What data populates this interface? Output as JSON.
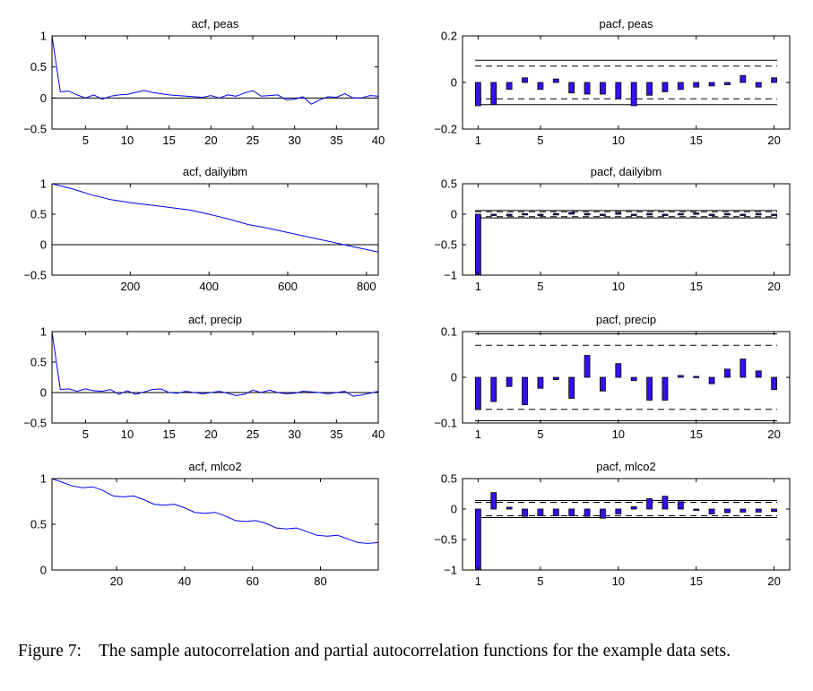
{
  "caption": {
    "label": "Figure 7:",
    "text": "The sample autocorrelation and partial autocorrelation functions for the example data sets."
  },
  "colors": {
    "series": "#0000ee",
    "bar_fill": "#3311ee",
    "axis": "#000000",
    "reference": "#000000"
  },
  "chart_data": [
    {
      "type": "line",
      "title": "acf, peas",
      "xlim": [
        1,
        40
      ],
      "ylim": [
        -0.5,
        1
      ],
      "xticks": [
        5,
        10,
        15,
        20,
        25,
        30,
        35,
        40
      ],
      "yticks": [
        -0.5,
        0,
        0.5,
        1
      ],
      "ytick_labels": [
        "−0.5",
        "0",
        "0.5",
        "1"
      ],
      "zero_line": true,
      "x": [
        1,
        2,
        3,
        4,
        5,
        6,
        7,
        8,
        9,
        10,
        11,
        12,
        13,
        14,
        15,
        16,
        17,
        18,
        19,
        20,
        21,
        22,
        23,
        24,
        25,
        26,
        27,
        28,
        29,
        30,
        31,
        32,
        33,
        34,
        35,
        36,
        37,
        38,
        39,
        40
      ],
      "y": [
        1.0,
        0.1,
        0.11,
        0.05,
        0.0,
        0.05,
        -0.02,
        0.03,
        0.05,
        0.06,
        0.09,
        0.12,
        0.09,
        0.07,
        0.05,
        0.04,
        0.03,
        0.02,
        0.01,
        0.04,
        0.0,
        0.05,
        0.03,
        0.08,
        0.12,
        0.03,
        0.04,
        0.05,
        -0.03,
        -0.02,
        0.02,
        -0.1,
        -0.03,
        0.02,
        0.01,
        0.07,
        0.0,
        0.0,
        0.04,
        0.03
      ]
    },
    {
      "type": "bar",
      "title": "pacf, peas",
      "xlim": [
        0,
        21
      ],
      "ylim": [
        -0.2,
        0.2
      ],
      "xticks": [
        1,
        5,
        10,
        15,
        20
      ],
      "yticks": [
        -0.2,
        0,
        0.2
      ],
      "ytick_labels": [
        "−0.2",
        "0",
        "0.2"
      ],
      "zero_line": false,
      "dashed_bounds": 0.07,
      "solid_bounds": 0.095,
      "categories": [
        1,
        2,
        3,
        4,
        5,
        6,
        7,
        8,
        9,
        10,
        11,
        12,
        13,
        14,
        15,
        16,
        17,
        18,
        19,
        20
      ],
      "values": [
        -0.1,
        -0.095,
        -0.03,
        0.02,
        -0.03,
        0.015,
        -0.045,
        -0.05,
        -0.05,
        -0.07,
        -0.1,
        -0.055,
        -0.04,
        -0.03,
        -0.02,
        -0.015,
        -0.01,
        0.03,
        -0.02,
        0.02
      ]
    },
    {
      "type": "line",
      "title": "acf, dailyibm",
      "xlim": [
        1,
        830
      ],
      "ylim": [
        -0.5,
        1
      ],
      "xticks": [
        200,
        400,
        600,
        800
      ],
      "yticks": [
        -0.5,
        0,
        0.5,
        1
      ],
      "ytick_labels": [
        "−0.5",
        "0",
        "0.5",
        "1"
      ],
      "zero_line": true,
      "x": [
        1,
        50,
        100,
        150,
        200,
        250,
        300,
        350,
        400,
        450,
        500,
        550,
        600,
        650,
        700,
        750,
        800,
        830
      ],
      "y": [
        1.0,
        0.92,
        0.82,
        0.74,
        0.69,
        0.65,
        0.61,
        0.57,
        0.5,
        0.42,
        0.33,
        0.27,
        0.2,
        0.13,
        0.06,
        -0.01,
        -0.08,
        -0.12
      ]
    },
    {
      "type": "bar",
      "title": "pacf, dailyibm",
      "xlim": [
        0,
        21
      ],
      "ylim": [
        -1,
        0.5
      ],
      "xticks": [
        1,
        5,
        10,
        15,
        20
      ],
      "yticks": [
        -1,
        -0.5,
        0,
        0.5
      ],
      "ytick_labels": [
        "−1",
        "−0.5",
        "0",
        "0.5"
      ],
      "zero_line": false,
      "dashed_bounds": 0.04,
      "solid_bounds": 0.06,
      "categories": [
        1,
        2,
        3,
        4,
        5,
        6,
        7,
        8,
        9,
        10,
        11,
        12,
        13,
        14,
        15,
        16,
        17,
        18,
        19,
        20
      ],
      "values": [
        -1.0,
        -0.02,
        -0.01,
        0.01,
        -0.02,
        0.01,
        0.03,
        0.01,
        -0.01,
        0.02,
        -0.02,
        0.01,
        -0.01,
        0.01,
        0.02,
        -0.01,
        0.01,
        -0.01,
        0.01,
        -0.02
      ]
    },
    {
      "type": "line",
      "title": "acf, precip",
      "xlim": [
        1,
        40
      ],
      "ylim": [
        -0.5,
        1
      ],
      "xticks": [
        5,
        10,
        15,
        20,
        25,
        30,
        35,
        40
      ],
      "yticks": [
        -0.5,
        0,
        0.5,
        1
      ],
      "ytick_labels": [
        "−0.5",
        "0",
        "0.5",
        "1"
      ],
      "zero_line": true,
      "x": [
        1,
        2,
        3,
        4,
        5,
        6,
        7,
        8,
        9,
        10,
        11,
        12,
        13,
        14,
        15,
        16,
        17,
        18,
        19,
        20,
        21,
        22,
        23,
        24,
        25,
        26,
        27,
        28,
        29,
        30,
        31,
        32,
        33,
        34,
        35,
        36,
        37,
        38,
        39,
        40
      ],
      "y": [
        1.0,
        0.05,
        0.06,
        0.02,
        0.06,
        0.03,
        0.02,
        0.05,
        -0.03,
        0.03,
        -0.03,
        0.01,
        0.05,
        0.06,
        0.0,
        -0.01,
        0.02,
        0.0,
        -0.02,
        0.0,
        0.02,
        -0.01,
        -0.05,
        -0.03,
        0.04,
        0.0,
        0.04,
        0.0,
        -0.02,
        -0.01,
        0.02,
        0.01,
        0.0,
        -0.02,
        0.0,
        0.02,
        -0.06,
        -0.04,
        -0.01,
        0.02
      ]
    },
    {
      "type": "bar",
      "title": "pacf, precip",
      "xlim": [
        0,
        21
      ],
      "ylim": [
        -0.1,
        0.1
      ],
      "xticks": [
        1,
        5,
        10,
        15,
        20
      ],
      "yticks": [
        -0.1,
        0,
        0.1
      ],
      "ytick_labels": [
        "−0.1",
        "0",
        "0.1"
      ],
      "zero_line": false,
      "dashed_bounds": 0.07,
      "solid_bounds": 0.095,
      "categories": [
        1,
        2,
        3,
        4,
        5,
        6,
        7,
        8,
        9,
        10,
        11,
        12,
        13,
        14,
        15,
        16,
        17,
        18,
        19,
        20
      ],
      "values": [
        -0.07,
        -0.053,
        -0.02,
        -0.06,
        -0.024,
        -0.005,
        -0.046,
        0.048,
        -0.03,
        0.03,
        -0.007,
        -0.05,
        -0.05,
        0.004,
        0.002,
        -0.014,
        0.018,
        0.04,
        0.014,
        -0.027
      ]
    },
    {
      "type": "line",
      "title": "acf, mlco2",
      "xlim": [
        1,
        97
      ],
      "ylim": [
        0,
        1
      ],
      "xticks": [
        20,
        40,
        60,
        80
      ],
      "yticks": [
        0,
        0.5,
        1
      ],
      "ytick_labels": [
        "0",
        "0.5",
        "1"
      ],
      "zero_line": false,
      "x": [
        1,
        4,
        7,
        10,
        13,
        16,
        19,
        22,
        25,
        28,
        31,
        34,
        37,
        40,
        43,
        46,
        49,
        52,
        55,
        58,
        61,
        64,
        67,
        70,
        73,
        76,
        79,
        82,
        85,
        88,
        91,
        94,
        97
      ],
      "y": [
        1.0,
        0.96,
        0.92,
        0.9,
        0.91,
        0.87,
        0.81,
        0.8,
        0.81,
        0.77,
        0.72,
        0.71,
        0.72,
        0.68,
        0.63,
        0.62,
        0.63,
        0.59,
        0.54,
        0.53,
        0.54,
        0.51,
        0.46,
        0.45,
        0.46,
        0.42,
        0.38,
        0.37,
        0.38,
        0.34,
        0.3,
        0.29,
        0.3
      ]
    },
    {
      "type": "bar",
      "title": "pacf, mlco2",
      "xlim": [
        0,
        21
      ],
      "ylim": [
        -1,
        0.5
      ],
      "xticks": [
        1,
        5,
        10,
        15,
        20
      ],
      "yticks": [
        -1,
        -0.5,
        0,
        0.5
      ],
      "ytick_labels": [
        "−1",
        "−0.5",
        "0",
        "0.5"
      ],
      "zero_line": false,
      "dashed_bounds": 0.11,
      "solid_bounds": 0.14,
      "categories": [
        1,
        2,
        3,
        4,
        5,
        6,
        7,
        8,
        9,
        10,
        11,
        12,
        13,
        14,
        15,
        16,
        17,
        18,
        19,
        20
      ],
      "values": [
        -1.0,
        0.27,
        0.03,
        -0.12,
        -0.11,
        -0.11,
        -0.11,
        -0.12,
        -0.15,
        -0.08,
        0.04,
        0.17,
        0.21,
        0.12,
        -0.01,
        -0.08,
        -0.06,
        -0.05,
        -0.05,
        -0.04
      ]
    }
  ]
}
